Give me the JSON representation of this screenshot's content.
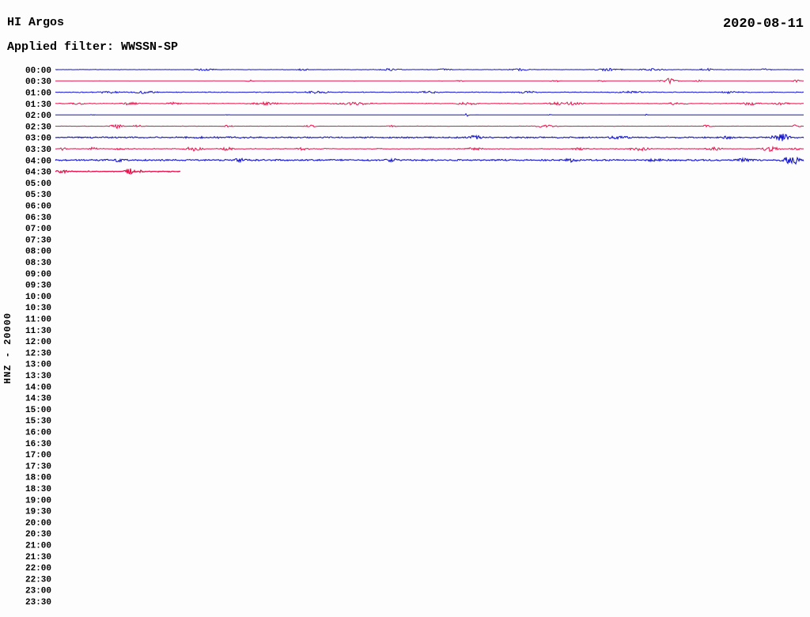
{
  "header": {
    "title": "HI Argos",
    "date": "2020-08-11",
    "filter_line": "Applied filter: WWSSN-SP"
  },
  "chart_data": {
    "type": "line",
    "title": "HI Argos",
    "subtitle": "Applied filter: WWSSN-SP",
    "date": "2020-08-11",
    "axis_label": "HNZ - 20000",
    "row_interval_minutes": 30,
    "legend_position": "none",
    "grid": false,
    "palette": {
      "blue": "#1414cc",
      "red": "#e8114b"
    },
    "rows": [
      {
        "time": "00:00",
        "trace": {
          "color": "blue",
          "coverage": 1,
          "base": 0.35,
          "density": 0.22,
          "lw": 1,
          "bursts": [
            [
              0.2,
              1.0,
              8
            ],
            [
              0.33,
              1.1,
              5
            ],
            [
              0.45,
              1.1,
              9
            ],
            [
              0.52,
              0.9,
              6
            ],
            [
              0.62,
              1.2,
              8
            ],
            [
              0.74,
              1.4,
              10
            ],
            [
              0.8,
              1.3,
              10
            ],
            [
              0.87,
              1.1,
              6
            ],
            [
              0.95,
              0.9,
              5
            ]
          ]
        }
      },
      {
        "time": "00:30",
        "trace": {
          "color": "red",
          "coverage": 1,
          "base": 0.2,
          "density": 0.05,
          "lw": 1,
          "bursts": [
            [
              0.26,
              1.0,
              3
            ],
            [
              0.54,
              0.8,
              3
            ],
            [
              0.67,
              1.1,
              4
            ],
            [
              0.73,
              0.9,
              3
            ],
            [
              0.82,
              3.2,
              6
            ],
            [
              0.86,
              1.0,
              3
            ],
            [
              0.99,
              1.4,
              3
            ]
          ]
        }
      },
      {
        "time": "01:00",
        "trace": {
          "color": "blue",
          "coverage": 1,
          "base": 0.55,
          "density": 0.45,
          "lw": 1,
          "bursts": [
            [
              0.07,
              1.0,
              10
            ],
            [
              0.12,
              1.2,
              8
            ],
            [
              0.35,
              1.0,
              10
            ],
            [
              0.5,
              1.1,
              8
            ],
            [
              0.63,
              1.0,
              8
            ],
            [
              0.77,
              1.1,
              10
            ],
            [
              0.9,
              1.0,
              8
            ]
          ]
        }
      },
      {
        "time": "01:30",
        "trace": {
          "color": "red",
          "coverage": 1,
          "base": 0.45,
          "density": 0.3,
          "lw": 1,
          "bursts": [
            [
              0.03,
              1.2,
              6
            ],
            [
              0.1,
              1.4,
              8
            ],
            [
              0.16,
              1.3,
              6
            ],
            [
              0.28,
              1.4,
              10
            ],
            [
              0.4,
              1.6,
              12
            ],
            [
              0.55,
              1.3,
              8
            ],
            [
              0.68,
              1.6,
              14
            ],
            [
              0.83,
              1.2,
              8
            ],
            [
              0.93,
              1.6,
              8
            ],
            [
              0.97,
              1.4,
              6
            ]
          ]
        }
      },
      {
        "time": "02:00",
        "trace": {
          "color": "blue",
          "coverage": 1,
          "base": 0.15,
          "density": 0.015,
          "lw": 1,
          "bursts": [
            [
              0.05,
              0.7,
              1.5
            ],
            [
              0.23,
              0.7,
              1.5
            ],
            [
              0.55,
              1.8,
              1.5
            ],
            [
              0.66,
              0.7,
              1.5
            ],
            [
              0.79,
              1.0,
              1.5
            ]
          ]
        }
      },
      {
        "time": "02:30",
        "trace": {
          "color": "red",
          "coverage": 1,
          "base": 0.3,
          "density": 0.12,
          "lw": 1,
          "bursts": [
            [
              0.082,
              2.6,
              5
            ],
            [
              0.11,
              1.2,
              4
            ],
            [
              0.23,
              1.1,
              4
            ],
            [
              0.34,
              1.2,
              5
            ],
            [
              0.45,
              0.9,
              4
            ],
            [
              0.655,
              1.4,
              9
            ],
            [
              0.87,
              1.3,
              4
            ],
            [
              0.99,
              1.6,
              3
            ]
          ]
        }
      },
      {
        "time": "03:00",
        "trace": {
          "color": "blue",
          "coverage": 1,
          "base": 0.85,
          "density": 0.7,
          "lw": 1.1,
          "bursts": [
            [
              0.2,
              0.4,
              30
            ],
            [
              0.56,
              2.4,
              5
            ],
            [
              0.75,
              1.2,
              8
            ],
            [
              0.9,
              1.2,
              6
            ],
            [
              0.97,
              4.2,
              7
            ]
          ]
        }
      },
      {
        "time": "03:30",
        "trace": {
          "color": "red",
          "coverage": 1,
          "base": 0.5,
          "density": 0.4,
          "lw": 1,
          "bursts": [
            [
              0.01,
              1.6,
              3
            ],
            [
              0.05,
              1.5,
              4
            ],
            [
              0.085,
              1.8,
              4
            ],
            [
              0.185,
              2.4,
              7
            ],
            [
              0.23,
              1.8,
              5
            ],
            [
              0.33,
              1.3,
              5
            ],
            [
              0.56,
              1.4,
              6
            ],
            [
              0.7,
              1.3,
              5
            ],
            [
              0.78,
              2.2,
              8
            ],
            [
              0.88,
              1.8,
              6
            ],
            [
              0.955,
              2.6,
              7
            ],
            [
              0.99,
              1.4,
              4
            ]
          ]
        }
      },
      {
        "time": "04:00",
        "trace": {
          "color": "blue",
          "coverage": 1,
          "base": 0.95,
          "density": 0.75,
          "lw": 1.1,
          "bursts": [
            [
              0.085,
              1.6,
              4
            ],
            [
              0.245,
              1.8,
              4
            ],
            [
              0.45,
              1.3,
              5
            ],
            [
              0.69,
              1.6,
              5
            ],
            [
              0.8,
              1.3,
              6
            ],
            [
              0.92,
              1.4,
              6
            ],
            [
              0.985,
              4.4,
              8
            ]
          ]
        }
      },
      {
        "time": "04:30",
        "trace": {
          "color": "red",
          "coverage": 0.167,
          "base": 0.7,
          "density": 0.45,
          "lw": 1.3,
          "bursts": [
            [
              0.004,
              1.6,
              2
            ],
            [
              0.012,
              2.0,
              2.5
            ],
            [
              0.1,
              3.2,
              3.5
            ],
            [
              0.115,
              1.8,
              2.5
            ]
          ]
        }
      },
      {
        "time": "05:00"
      },
      {
        "time": "05:30"
      },
      {
        "time": "06:00"
      },
      {
        "time": "06:30"
      },
      {
        "time": "07:00"
      },
      {
        "time": "07:30"
      },
      {
        "time": "08:00"
      },
      {
        "time": "08:30"
      },
      {
        "time": "09:00"
      },
      {
        "time": "09:30"
      },
      {
        "time": "10:00"
      },
      {
        "time": "10:30"
      },
      {
        "time": "11:00"
      },
      {
        "time": "11:30"
      },
      {
        "time": "12:00"
      },
      {
        "time": "12:30"
      },
      {
        "time": "13:00"
      },
      {
        "time": "13:30"
      },
      {
        "time": "14:00"
      },
      {
        "time": "14:30"
      },
      {
        "time": "15:00"
      },
      {
        "time": "15:30"
      },
      {
        "time": "16:00"
      },
      {
        "time": "16:30"
      },
      {
        "time": "17:00"
      },
      {
        "time": "17:30"
      },
      {
        "time": "18:00"
      },
      {
        "time": "18:30"
      },
      {
        "time": "19:00"
      },
      {
        "time": "19:30"
      },
      {
        "time": "20:00"
      },
      {
        "time": "20:30"
      },
      {
        "time": "21:00"
      },
      {
        "time": "21:30"
      },
      {
        "time": "22:00"
      },
      {
        "time": "22:30"
      },
      {
        "time": "23:00"
      },
      {
        "time": "23:30"
      }
    ]
  }
}
